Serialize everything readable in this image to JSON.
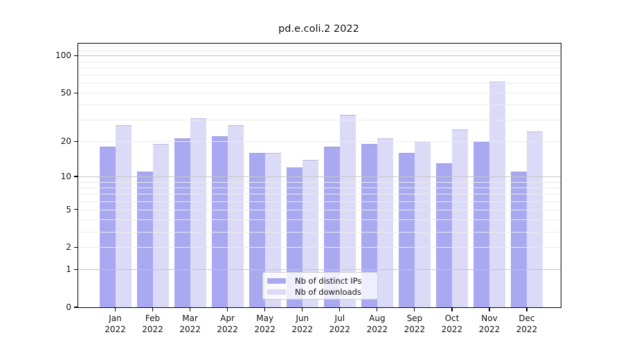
{
  "chart_data": {
    "type": "bar",
    "title": "pd.e.coli.2 2022",
    "categories": [
      "Jan",
      "Feb",
      "Mar",
      "Apr",
      "May",
      "Jun",
      "Jul",
      "Aug",
      "Sep",
      "Oct",
      "Nov",
      "Dec"
    ],
    "year": "2022",
    "series": [
      {
        "name": "Nb of distinct IPs",
        "color": "#a9a9f1",
        "values": [
          18,
          11,
          21,
          22,
          16,
          12,
          18,
          19,
          16,
          13,
          20,
          11
        ]
      },
      {
        "name": "Nb of downloads",
        "color": "#dbdbf8",
        "values": [
          27,
          19,
          31,
          27,
          16,
          14,
          33,
          21,
          20,
          25,
          62,
          24
        ]
      }
    ],
    "scale": "log1p",
    "ylim": [
      0,
      125
    ],
    "yticks": [
      0,
      1,
      2,
      5,
      10,
      20,
      50,
      100
    ],
    "major_gridlines": [
      1,
      10,
      100
    ],
    "minor_gridlines": [
      2,
      3,
      4,
      5,
      6,
      7,
      8,
      9,
      20,
      30,
      40,
      50,
      60,
      70,
      80,
      90,
      110,
      120
    ],
    "grid": true,
    "legend_position": "lower center",
    "colors": {
      "major_grid": "#c6c6c6",
      "minor_grid": "#ebebeb",
      "axis": "#000000"
    }
  }
}
